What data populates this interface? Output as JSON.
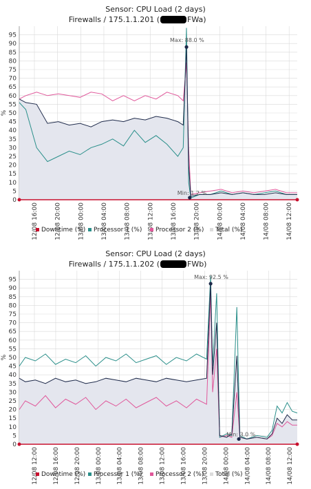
{
  "chart_data": [
    {
      "type": "line",
      "title": "Sensor: CPU Load (2 days)",
      "subtitle_left": "Firewalls / 175.1.1.201 (",
      "subtitle_right": "FWa)",
      "ylabel": "%",
      "ylim": [
        0,
        100
      ],
      "yticks": [
        "0",
        "5",
        "10",
        "15",
        "20",
        "25",
        "30",
        "35",
        "40",
        "45",
        "50",
        "55",
        "60",
        "65",
        "70",
        "75",
        "80",
        "85",
        "90",
        "95"
      ],
      "xticks": [
        "12/08 16:00",
        "12/08 20:00",
        "13/08 00:00",
        "13/08 04:00",
        "13/08 08:00",
        "13/08 12:00",
        "13/08 16:00",
        "13/08 20:00",
        "14/08 00:00",
        "14/08 04:00",
        "14/08 08:00",
        "14/08 12:00"
      ],
      "xrange": [
        12.4,
        38.0
      ],
      "grid": true,
      "legend_position": "bottom",
      "legend": [
        {
          "name": "Downtime (%)",
          "color": "#c8102e"
        },
        {
          "name": "Processor 1 (%)",
          "color": "#2a8f8a"
        },
        {
          "name": "Processor 2 (%)",
          "color": "#e0579a"
        },
        {
          "name": "Total (%)",
          "color": "#dcdcdc"
        }
      ],
      "annotations": [
        {
          "text": "Max: 88.0 %",
          "x": 27.8,
          "y": 88.0
        },
        {
          "text": "Min: 1.2 %",
          "x": 28.1,
          "y": 1.2
        }
      ],
      "series": [
        {
          "name": "Total (%)",
          "color": "#1e2a4a",
          "points": [
            [
              12.4,
              58
            ],
            [
              13.0,
              56
            ],
            [
              14.0,
              55
            ],
            [
              15.0,
              44
            ],
            [
              16.0,
              45
            ],
            [
              17.0,
              43
            ],
            [
              18.0,
              44
            ],
            [
              19.0,
              42
            ],
            [
              20.0,
              45
            ],
            [
              21.0,
              46
            ],
            [
              22.0,
              45
            ],
            [
              23.0,
              47
            ],
            [
              24.0,
              46
            ],
            [
              25.0,
              48
            ],
            [
              26.0,
              47
            ],
            [
              27.0,
              45
            ],
            [
              27.5,
              43
            ],
            [
              27.8,
              88
            ],
            [
              28.0,
              20
            ],
            [
              28.2,
              2
            ],
            [
              29.0,
              3
            ],
            [
              30.0,
              3
            ],
            [
              31.0,
              4
            ],
            [
              32.0,
              3
            ],
            [
              33.0,
              4
            ],
            [
              34.0,
              3
            ],
            [
              35.0,
              3
            ],
            [
              36.0,
              4
            ],
            [
              37.0,
              3
            ],
            [
              38.0,
              3
            ]
          ]
        },
        {
          "name": "Processor 1 (%)",
          "color": "#2a8f8a",
          "points": [
            [
              12.4,
              56
            ],
            [
              13.0,
              52
            ],
            [
              14.0,
              30
            ],
            [
              15.0,
              22
            ],
            [
              16.0,
              25
            ],
            [
              17.0,
              28
            ],
            [
              18.0,
              26
            ],
            [
              19.0,
              30
            ],
            [
              20.0,
              32
            ],
            [
              21.0,
              35
            ],
            [
              22.0,
              31
            ],
            [
              23.0,
              40
            ],
            [
              24.0,
              33
            ],
            [
              25.0,
              37
            ],
            [
              26.0,
              32
            ],
            [
              27.0,
              25
            ],
            [
              27.5,
              30
            ],
            [
              27.8,
              99
            ],
            [
              28.0,
              10
            ],
            [
              28.2,
              1
            ],
            [
              29.0,
              3
            ],
            [
              30.0,
              3
            ],
            [
              31.0,
              5
            ],
            [
              32.0,
              3
            ],
            [
              33.0,
              4
            ],
            [
              34.0,
              3
            ],
            [
              35.0,
              4
            ],
            [
              36.0,
              5
            ],
            [
              37.0,
              3
            ],
            [
              38.0,
              3
            ]
          ]
        },
        {
          "name": "Processor 2 (%)",
          "color": "#e0579a",
          "points": [
            [
              12.4,
              58
            ],
            [
              13.0,
              60
            ],
            [
              14.0,
              62
            ],
            [
              15.0,
              60
            ],
            [
              16.0,
              61
            ],
            [
              17.0,
              60
            ],
            [
              18.0,
              59
            ],
            [
              19.0,
              62
            ],
            [
              20.0,
              61
            ],
            [
              21.0,
              57
            ],
            [
              22.0,
              60
            ],
            [
              23.0,
              57
            ],
            [
              24.0,
              60
            ],
            [
              25.0,
              58
            ],
            [
              26.0,
              62
            ],
            [
              27.0,
              60
            ],
            [
              27.5,
              57
            ],
            [
              27.8,
              79
            ],
            [
              28.0,
              30
            ],
            [
              28.2,
              3
            ],
            [
              29.0,
              4
            ],
            [
              30.0,
              5
            ],
            [
              31.0,
              6
            ],
            [
              32.0,
              4
            ],
            [
              33.0,
              5
            ],
            [
              34.0,
              4
            ],
            [
              35.0,
              5
            ],
            [
              36.0,
              6
            ],
            [
              37.0,
              4
            ],
            [
              38.0,
              4
            ]
          ]
        },
        {
          "name": "Downtime (%)",
          "color": "#c8102e",
          "points": [
            [
              12.4,
              0
            ],
            [
              38.0,
              0
            ]
          ]
        }
      ]
    },
    {
      "type": "line",
      "title": "Sensor: CPU Load (2 days)",
      "subtitle_left": "Firewalls / 175.1.1.202 (",
      "subtitle_right": "FWb)",
      "ylabel": "%",
      "ylim": [
        0,
        100
      ],
      "yticks": [
        "0",
        "5",
        "10",
        "15",
        "20",
        "25",
        "30",
        "35",
        "40",
        "45",
        "50",
        "55",
        "60",
        "65",
        "70",
        "75",
        "80",
        "85",
        "90",
        "95"
      ],
      "xticks": [
        "12/08 12:00",
        "12/08 16:00",
        "12/08 20:00",
        "13/08 00:00",
        "13/08 04:00",
        "13/08 08:00",
        "13/08 12:00",
        "13/08 16:00",
        "13/08 20:00",
        "14/08 00:00",
        "14/08 04:00",
        "14/08 08:00",
        "14/08 12:00"
      ],
      "xrange": [
        10.4,
        38.0
      ],
      "grid": true,
      "legend_position": "bottom",
      "legend": [
        {
          "name": "Downtime (%)",
          "color": "#c8102e"
        },
        {
          "name": "Processor 1 (%)",
          "color": "#2a8f8a"
        },
        {
          "name": "Processor 2 (%)",
          "color": "#e0579a"
        },
        {
          "name": "Total (%)",
          "color": "#dcdcdc"
        }
      ],
      "annotations": [
        {
          "text": "Max: 92.5 %",
          "x": 29.4,
          "y": 92.5
        },
        {
          "text": "Min: 3.0 %",
          "x": 32.2,
          "y": 3.0
        }
      ],
      "series": [
        {
          "name": "Total (%)",
          "color": "#1e2a4a",
          "points": [
            [
              10.4,
              38
            ],
            [
              11.0,
              36
            ],
            [
              12.0,
              37
            ],
            [
              13.0,
              35
            ],
            [
              14.0,
              38
            ],
            [
              15.0,
              36
            ],
            [
              16.0,
              37
            ],
            [
              17.0,
              35
            ],
            [
              18.0,
              36
            ],
            [
              19.0,
              38
            ],
            [
              20.0,
              37
            ],
            [
              21.0,
              36
            ],
            [
              22.0,
              38
            ],
            [
              23.0,
              37
            ],
            [
              24.0,
              36
            ],
            [
              25.0,
              38
            ],
            [
              26.0,
              37
            ],
            [
              27.0,
              36
            ],
            [
              28.0,
              37
            ],
            [
              29.0,
              38
            ],
            [
              29.4,
              92.5
            ],
            [
              29.6,
              40
            ],
            [
              30.0,
              70
            ],
            [
              30.3,
              5
            ],
            [
              31.0,
              4
            ],
            [
              31.5,
              6
            ],
            [
              32.0,
              51
            ],
            [
              32.3,
              4
            ],
            [
              33.0,
              3
            ],
            [
              34.0,
              4
            ],
            [
              35.0,
              3
            ],
            [
              35.5,
              6
            ],
            [
              36.0,
              15
            ],
            [
              36.5,
              12
            ],
            [
              37.0,
              17
            ],
            [
              37.5,
              14
            ],
            [
              38.0,
              14
            ]
          ]
        },
        {
          "name": "Processor 1 (%)",
          "color": "#2a8f8a",
          "points": [
            [
              10.4,
              45
            ],
            [
              11.0,
              50
            ],
            [
              12.0,
              48
            ],
            [
              13.0,
              52
            ],
            [
              14.0,
              46
            ],
            [
              15.0,
              49
            ],
            [
              16.0,
              47
            ],
            [
              17.0,
              51
            ],
            [
              18.0,
              45
            ],
            [
              19.0,
              50
            ],
            [
              20.0,
              48
            ],
            [
              21.0,
              52
            ],
            [
              22.0,
              47
            ],
            [
              23.0,
              49
            ],
            [
              24.0,
              51
            ],
            [
              25.0,
              46
            ],
            [
              26.0,
              50
            ],
            [
              27.0,
              48
            ],
            [
              28.0,
              52
            ],
            [
              29.0,
              49
            ],
            [
              29.4,
              97
            ],
            [
              29.6,
              45
            ],
            [
              30.0,
              87
            ],
            [
              30.3,
              4
            ],
            [
              31.0,
              6
            ],
            [
              31.5,
              5
            ],
            [
              32.0,
              79
            ],
            [
              32.3,
              5
            ],
            [
              33.0,
              3
            ],
            [
              34.0,
              5
            ],
            [
              35.0,
              4
            ],
            [
              35.5,
              8
            ],
            [
              36.0,
              22
            ],
            [
              36.5,
              18
            ],
            [
              37.0,
              24
            ],
            [
              37.5,
              19
            ],
            [
              38.0,
              18
            ]
          ]
        },
        {
          "name": "Processor 2 (%)",
          "color": "#e0579a",
          "points": [
            [
              10.4,
              20
            ],
            [
              11.0,
              25
            ],
            [
              12.0,
              22
            ],
            [
              13.0,
              28
            ],
            [
              14.0,
              21
            ],
            [
              15.0,
              26
            ],
            [
              16.0,
              23
            ],
            [
              17.0,
              27
            ],
            [
              18.0,
              20
            ],
            [
              19.0,
              25
            ],
            [
              20.0,
              22
            ],
            [
              21.0,
              26
            ],
            [
              22.0,
              21
            ],
            [
              23.0,
              24
            ],
            [
              24.0,
              27
            ],
            [
              25.0,
              22
            ],
            [
              26.0,
              25
            ],
            [
              27.0,
              21
            ],
            [
              28.0,
              26
            ],
            [
              29.0,
              23
            ],
            [
              29.4,
              87
            ],
            [
              29.6,
              30
            ],
            [
              30.0,
              55
            ],
            [
              30.3,
              4
            ],
            [
              31.0,
              5
            ],
            [
              31.5,
              4
            ],
            [
              32.0,
              30
            ],
            [
              32.3,
              4
            ],
            [
              33.0,
              3
            ],
            [
              34.0,
              4
            ],
            [
              35.0,
              3
            ],
            [
              35.5,
              5
            ],
            [
              36.0,
              12
            ],
            [
              36.5,
              10
            ],
            [
              37.0,
              13
            ],
            [
              37.5,
              11
            ],
            [
              38.0,
              11
            ]
          ]
        },
        {
          "name": "Downtime (%)",
          "color": "#c8102e",
          "points": [
            [
              10.4,
              0
            ],
            [
              38.0,
              0
            ]
          ]
        }
      ]
    }
  ]
}
